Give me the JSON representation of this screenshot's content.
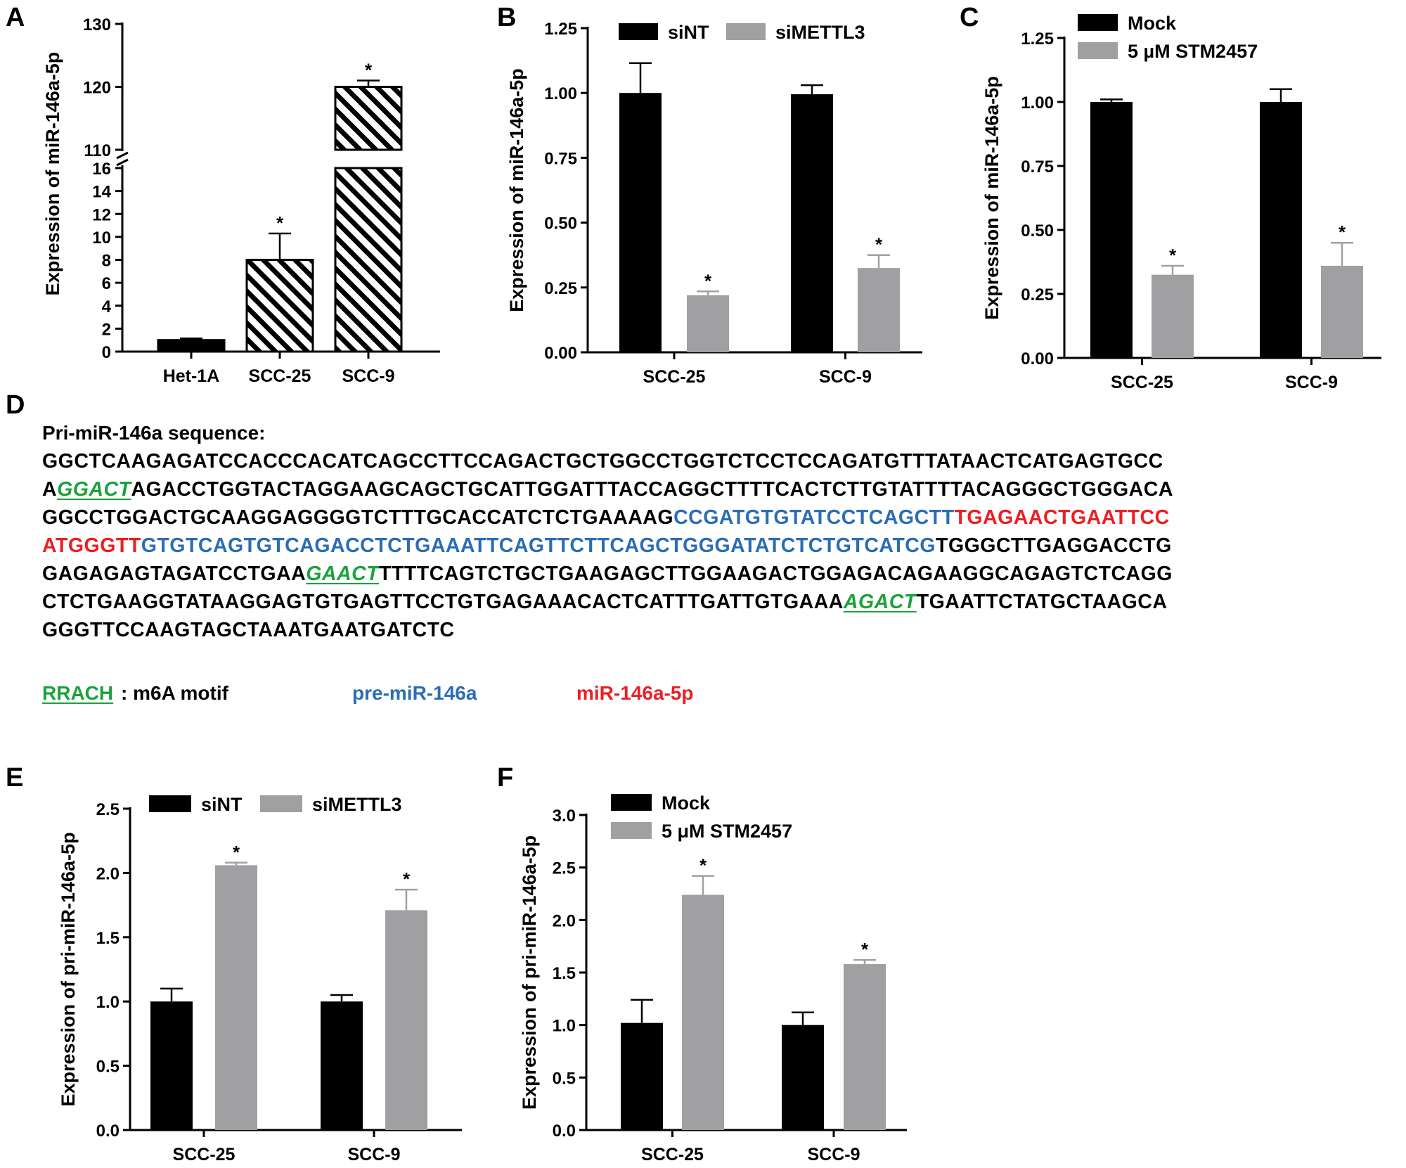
{
  "panels": {
    "A": {
      "label": "A"
    },
    "B": {
      "label": "B"
    },
    "C": {
      "label": "C"
    },
    "D": {
      "label": "D"
    },
    "E": {
      "label": "E"
    },
    "F": {
      "label": "F"
    }
  },
  "chart_data": [
    {
      "id": "A",
      "type": "bar",
      "broken_axis": true,
      "ylabel": "Expression of miR-146a-5p",
      "categories": [
        "Het-1A",
        "SCC-25",
        "SCC-9"
      ],
      "values": [
        1.0,
        8.0,
        120.0
      ],
      "errors": [
        0.15,
        2.3,
        1.0
      ],
      "significance": [
        "",
        "*",
        "*"
      ],
      "fill": [
        "#000000",
        "hatch",
        "hatch"
      ],
      "lower_ticks": [
        "0",
        "2",
        "4",
        "6",
        "8",
        "10",
        "12",
        "14",
        "16"
      ],
      "upper_ticks": [
        "110",
        "120",
        "130"
      ],
      "ylim_lower": [
        0,
        16
      ],
      "ylim_upper": [
        110,
        130
      ]
    },
    {
      "id": "B",
      "type": "bar",
      "ylabel": "Expression of miR-146a-5p",
      "categories": [
        "SCC-25",
        "SCC-9"
      ],
      "series": [
        {
          "name": "siNT",
          "color": "#000000",
          "values": [
            1.0,
            0.995
          ],
          "errors": [
            0.115,
            0.035
          ],
          "significance": [
            "",
            ""
          ]
        },
        {
          "name": "siMETTL3",
          "color": "#a0a0a2",
          "values": [
            0.22,
            0.325
          ],
          "errors": [
            0.015,
            0.05
          ],
          "significance": [
            "*",
            "*"
          ]
        }
      ],
      "ticks": [
        "0.00",
        "0.25",
        "0.50",
        "0.75",
        "1.00",
        "1.25"
      ],
      "ylim": [
        0,
        1.25
      ],
      "legend": "top"
    },
    {
      "id": "C",
      "type": "bar",
      "ylabel": "Expression of miR-146a-5p",
      "categories": [
        "SCC-25",
        "SCC-9"
      ],
      "series": [
        {
          "name": "Mock",
          "color": "#000000",
          "values": [
            1.0,
            1.0
          ],
          "errors": [
            0.01,
            0.05
          ],
          "significance": [
            "",
            ""
          ]
        },
        {
          "name": "5 µM STM2457",
          "color": "#a0a0a2",
          "values": [
            0.325,
            0.36
          ],
          "errors": [
            0.035,
            0.09
          ],
          "significance": [
            "*",
            "*"
          ]
        }
      ],
      "ticks": [
        "0.00",
        "0.25",
        "0.50",
        "0.75",
        "1.00",
        "1.25"
      ],
      "ylim": [
        0,
        1.25
      ],
      "legend": "top"
    },
    {
      "id": "E",
      "type": "bar",
      "ylabel": "Expression of pri-miR-146a-5p",
      "categories": [
        "SCC-25",
        "SCC-9"
      ],
      "series": [
        {
          "name": "siNT",
          "color": "#000000",
          "values": [
            1.0,
            1.0
          ],
          "errors": [
            0.1,
            0.05
          ],
          "significance": [
            "",
            ""
          ]
        },
        {
          "name": "siMETTL3",
          "color": "#a0a0a2",
          "values": [
            2.06,
            1.71
          ],
          "errors": [
            0.02,
            0.16
          ],
          "significance": [
            "*",
            "*"
          ]
        }
      ],
      "ticks": [
        "0.0",
        "0.5",
        "1.0",
        "1.5",
        "2.0",
        "2.5"
      ],
      "ylim": [
        0,
        2.5
      ],
      "legend": "top"
    },
    {
      "id": "F",
      "type": "bar",
      "ylabel": "Expression of pri-miR-146a-5p",
      "categories": [
        "SCC-25",
        "SCC-9"
      ],
      "series": [
        {
          "name": "Mock",
          "color": "#000000",
          "values": [
            1.02,
            1.0
          ],
          "errors": [
            0.22,
            0.12
          ],
          "significance": [
            "",
            ""
          ]
        },
        {
          "name": "5 μM STM2457",
          "color": "#a0a0a2",
          "values": [
            2.24,
            1.58
          ],
          "errors": [
            0.18,
            0.04
          ],
          "significance": [
            "*",
            "*"
          ]
        }
      ],
      "ticks": [
        "0.0",
        "0.5",
        "1.0",
        "1.5",
        "2.0",
        "2.5",
        "3.0"
      ],
      "ylim": [
        0,
        3.0
      ],
      "legend": "top"
    }
  ],
  "sequence": {
    "title": "Pri-miR-146a sequence:",
    "lines": [
      [
        {
          "t": "GGCTCAAGAGATCCACCCACATCAGCCTTCCAGACTGCTGGCCTGGTCTCCTCCAGATGTTTATAACTCATGAGTGCC",
          "c": "normal"
        }
      ],
      [
        {
          "t": "A",
          "c": "normal"
        },
        {
          "t": "GGACT",
          "c": "motif"
        },
        {
          "t": "AGACCTGGTACTAGGAAGCAGCTGCATTGGATTTACCAGGCTTTTCACTCTTGTATTTTACAGGGCTGGGACA",
          "c": "normal"
        }
      ],
      [
        {
          "t": "GGCCTGGACTGCAAGGAGGGGTCTTTGCACCATCTCTGAAAAG",
          "c": "normal"
        },
        {
          "t": "CCGATGTGTATCCTCAGCTT",
          "c": "pre"
        },
        {
          "t": "TGAGAACTGAATTCC",
          "c": "mature"
        }
      ],
      [
        {
          "t": "ATGGGTT",
          "c": "mature"
        },
        {
          "t": "GTGTCAGTGTCAGACCTCTGAAATTCAGTTCTTCAGCTGGGATATCTCTGTCATCG",
          "c": "pre"
        },
        {
          "t": "TGGGCTTGAGGACCTG",
          "c": "normal"
        }
      ],
      [
        {
          "t": "GAGAGAGTAGATCCTGAA",
          "c": "normal"
        },
        {
          "t": "GAACT",
          "c": "motif"
        },
        {
          "t": "TTTTCAGTCTGCTGAAGAGCTTGGAAGACTGGAGACAGAAGGCAGAGTCTCAGG",
          "c": "normal"
        }
      ],
      [
        {
          "t": "CTCTGAAGGTATAAGGAGTGTGAGTTCCTGTGAGAAACACTCATTTGATTGTGAAA",
          "c": "normal"
        },
        {
          "t": "AGACT",
          "c": "motif"
        },
        {
          "t": "TGAATTCTATGCTAAGCA",
          "c": "normal"
        }
      ],
      [
        {
          "t": "GGGTTCCAAGTAGCTAAATGAATGATCTC",
          "c": "normal"
        }
      ]
    ],
    "legend": {
      "motif_label": "RRACH",
      "motif_desc": ": m6A motif",
      "pre_label": "pre-miR-146a",
      "mature_label": "miR-146a-5p"
    },
    "colors": {
      "motif": "#1aa23b",
      "pre": "#2a6db5",
      "mature": "#ea1f24"
    }
  }
}
